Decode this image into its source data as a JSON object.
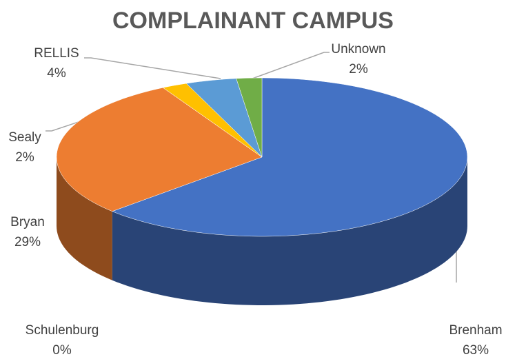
{
  "chart_data": {
    "type": "pie",
    "title": "COMPLAINANT CAMPUS",
    "categories": [
      "Brenham",
      "Bryan",
      "Schulenburg",
      "Sealy",
      "RELLIS",
      "Unknown"
    ],
    "values": [
      63,
      29,
      0,
      2,
      4,
      2
    ],
    "value_labels": [
      "63%",
      "29%",
      "0%",
      "2%",
      "4%",
      "2%"
    ],
    "colors": [
      "#4472c4",
      "#ed7d31",
      "#a5a5a5",
      "#ffc000",
      "#5b9bd5",
      "#70ad47"
    ]
  }
}
